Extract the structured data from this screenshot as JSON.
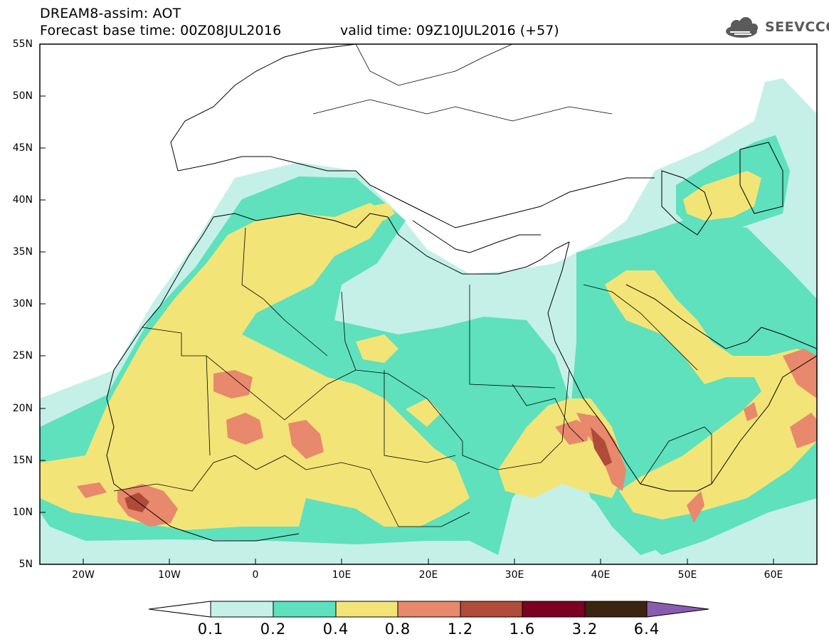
{
  "header": {
    "title_line1": "DREAM8-assim: AOT",
    "title_line2": "Forecast base time: 00Z08JUL2016",
    "valid_time": "valid time: 09Z10JUL2016 (+57)",
    "logo_text": "SEEVCCC"
  },
  "map": {
    "projection": "lat-lon",
    "lon_range": [
      -25,
      65
    ],
    "lat_range": [
      5,
      55
    ],
    "lat_labels": [
      "55N",
      "50N",
      "45N",
      "40N",
      "35N",
      "30N",
      "25N",
      "20N",
      "15N",
      "10N",
      "5N"
    ],
    "lon_labels": [
      "20W",
      "10W",
      "0",
      "10E",
      "20E",
      "30E",
      "40E",
      "50E",
      "60E"
    ]
  },
  "colorbar": {
    "labels": [
      "0.1",
      "0.2",
      "0.4",
      "0.8",
      "1.2",
      "1.6",
      "3.2",
      "6.4"
    ],
    "colors": [
      "#ffffff",
      "#c4f0e8",
      "#5ee1bc",
      "#f3e477",
      "#e8886c",
      "#b04a39",
      "#7c0022",
      "#3b2410",
      "#8a5cb0"
    ]
  },
  "colors": {
    "aot_0_1_0_2": "#c4f0e8",
    "aot_0_2_0_4": "#5ee1bc",
    "aot_0_4_0_8": "#f3e477",
    "aot_0_8_1_2": "#e8886c",
    "aot_1_2_1_6": "#b04a39"
  }
}
